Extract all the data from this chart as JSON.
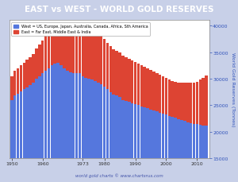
{
  "title": "EAST vs WEST - WORLD GOLD RESERVES",
  "title_color": "#ffffff",
  "title_bg_color": "#5577cc",
  "background_color": "#c8d0e8",
  "plot_bg_color": "#ffffff",
  "ylabel": "World Gold Reserves (Tonnes)",
  "ylabel_color": "#3355bb",
  "xlabel_watermark": "world gold charts © www.chartsrus.com",
  "legend_west": "West = US, Europe, Japan, Australia, Canada, Africa, Sth America",
  "legend_east": "East = Far East, Middle East & India",
  "west_color": "#5577dd",
  "east_color": "#dd4433",
  "years": [
    1950,
    1951,
    1952,
    1953,
    1954,
    1955,
    1956,
    1957,
    1958,
    1959,
    1960,
    1961,
    1962,
    1963,
    1964,
    1965,
    1966,
    1967,
    1968,
    1969,
    1970,
    1971,
    1972,
    1973,
    1974,
    1975,
    1976,
    1977,
    1978,
    1979,
    1980,
    1981,
    1982,
    1983,
    1984,
    1985,
    1986,
    1987,
    1988,
    1989,
    1990,
    1991,
    1992,
    1993,
    1994,
    1995,
    1996,
    1997,
    1998,
    1999,
    2000,
    2001,
    2002,
    2003,
    2004,
    2005,
    2006,
    2007,
    2008,
    2009,
    2010,
    2011,
    2012,
    2013
  ],
  "west_values": [
    26000,
    26800,
    27200,
    27600,
    28000,
    28400,
    28800,
    29200,
    30000,
    30500,
    31000,
    31500,
    32000,
    32500,
    32800,
    33000,
    32500,
    32000,
    31500,
    31200,
    31000,
    31000,
    31000,
    30500,
    30200,
    30000,
    29800,
    29500,
    29200,
    29000,
    28500,
    28000,
    27500,
    27000,
    26800,
    26500,
    26000,
    25800,
    25600,
    25400,
    25200,
    25000,
    24800,
    24600,
    24400,
    24200,
    24000,
    23800,
    23600,
    23400,
    23200,
    23000,
    22800,
    22600,
    22400,
    22200,
    22000,
    21800,
    21600,
    21500,
    21400,
    21300,
    21200,
    21100
  ],
  "east_values": [
    4500,
    4700,
    4800,
    4900,
    5000,
    5200,
    5300,
    5500,
    5700,
    5900,
    6200,
    6500,
    6800,
    7000,
    7200,
    7500,
    7800,
    8200,
    8500,
    8800,
    9000,
    9200,
    9500,
    9800,
    10200,
    10000,
    9800,
    9600,
    9400,
    9200,
    9000,
    8800,
    8700,
    8600,
    8500,
    8400,
    8300,
    8200,
    8100,
    8000,
    7900,
    7800,
    7700,
    7600,
    7500,
    7400,
    7300,
    7200,
    7100,
    7000,
    6900,
    6800,
    6700,
    6800,
    6900,
    7000,
    7200,
    7400,
    7600,
    7800,
    8000,
    8500,
    9000,
    9500
  ],
  "ylim": [
    15000,
    41000
  ],
  "yticks": [
    15000,
    20000,
    25000,
    30000,
    35000,
    40000
  ],
  "xticks": [
    1950,
    1960,
    1973,
    1980,
    1990,
    2000,
    2010
  ],
  "xtick_labels": [
    "1950",
    "1960",
    "1973",
    "1980",
    "1990",
    "2000",
    "2010"
  ]
}
